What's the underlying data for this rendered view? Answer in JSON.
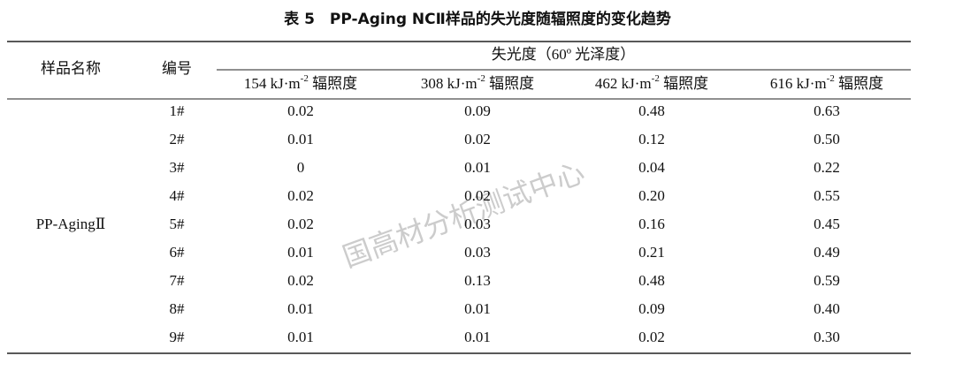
{
  "table": {
    "title": "表 5　PP-Aging NCⅡ样品的失光度随辐照度的变化趋势",
    "header": {
      "sample": "样品名称",
      "number": "编号",
      "group": "失光度（60º 光泽度）",
      "columns": [
        {
          "pre": "154 kJ·m",
          "sup": "-2",
          "post": " 辐照度"
        },
        {
          "pre": "308 kJ·m",
          "sup": "-2",
          "post": " 辐照度"
        },
        {
          "pre": "462 kJ·m",
          "sup": "-2",
          "post": " 辐照度"
        },
        {
          "pre": "616 kJ·m",
          "sup": "-2",
          "post": " 辐照度"
        }
      ]
    },
    "sample_name": "PP-AgingⅡ",
    "rows": [
      [
        "1#",
        "0.02",
        "0.09",
        "0.48",
        "0.63"
      ],
      [
        "2#",
        "0.01",
        "0.02",
        "0.12",
        "0.50"
      ],
      [
        "3#",
        "0",
        "0.01",
        "0.04",
        "0.22"
      ],
      [
        "4#",
        "0.02",
        "0.02",
        "0.20",
        "0.55"
      ],
      [
        "5#",
        "0.02",
        "0.03",
        "0.16",
        "0.45"
      ],
      [
        "6#",
        "0.01",
        "0.03",
        "0.21",
        "0.49"
      ],
      [
        "7#",
        "0.02",
        "0.13",
        "0.48",
        "0.59"
      ],
      [
        "8#",
        "0.01",
        "0.01",
        "0.09",
        "0.40"
      ],
      [
        "9#",
        "0.01",
        "0.01",
        "0.02",
        "0.30"
      ]
    ]
  },
  "watermark": "国高材分析测试中心"
}
